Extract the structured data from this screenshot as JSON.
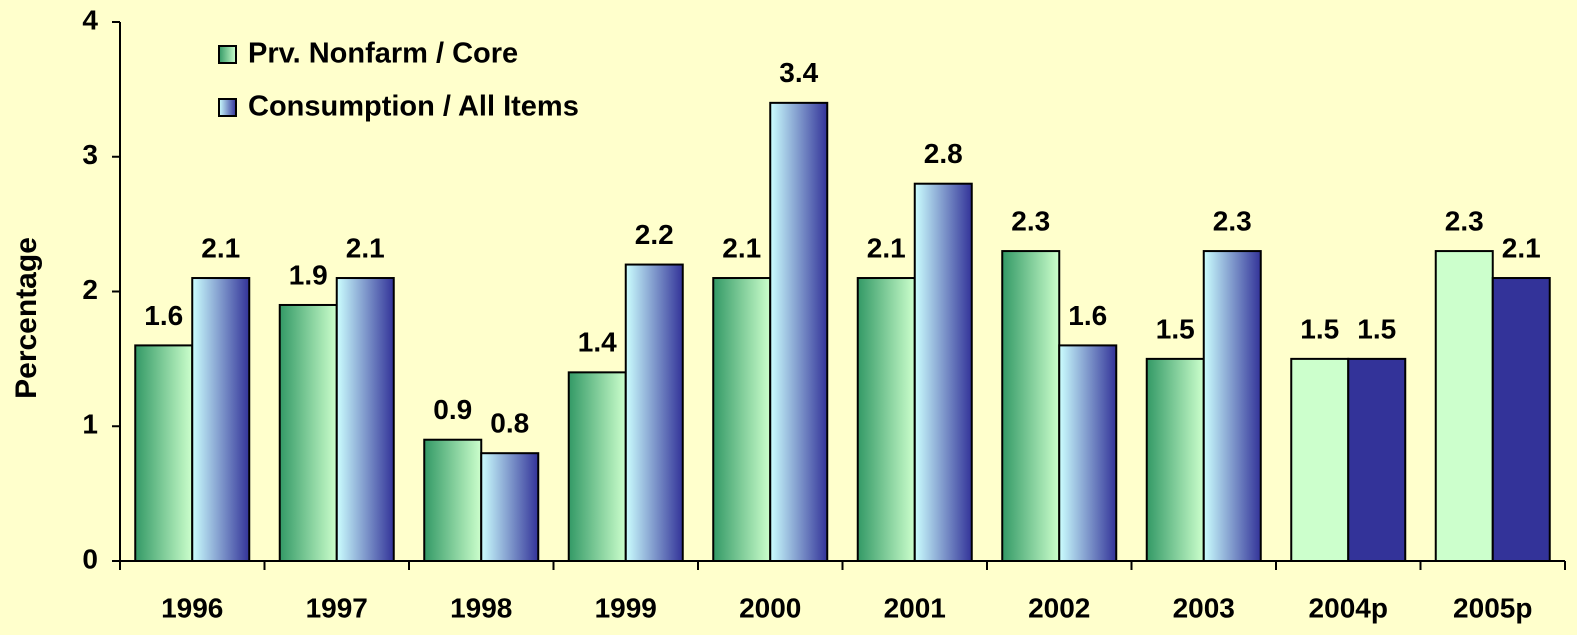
{
  "chart_data": {
    "type": "bar",
    "y_label": "Percentage",
    "categories": [
      "1996",
      "1997",
      "1998",
      "1999",
      "2000",
      "2001",
      "2002",
      "2003",
      "2004p",
      "2005p"
    ],
    "series": [
      {
        "name": "Prv. Nonfarm / Core",
        "color": "#ccffcc",
        "shade_color": "#339966",
        "values": [
          1.6,
          1.9,
          0.9,
          1.4,
          2.1,
          2.1,
          2.3,
          1.5,
          1.5,
          2.3
        ]
      },
      {
        "name": "Consumption / All Items",
        "color": "#333399",
        "shade_color": "#ccffff",
        "values": [
          2.1,
          2.1,
          0.8,
          2.2,
          3.4,
          2.8,
          1.6,
          2.3,
          1.5,
          2.1
        ]
      }
    ],
    "shaded": [
      true,
      true,
      true,
      true,
      true,
      true,
      true,
      true,
      false,
      false
    ],
    "ylim": [
      0,
      4
    ],
    "yticks": [
      0,
      1,
      2,
      3,
      4
    ],
    "legend": "top-left"
  }
}
